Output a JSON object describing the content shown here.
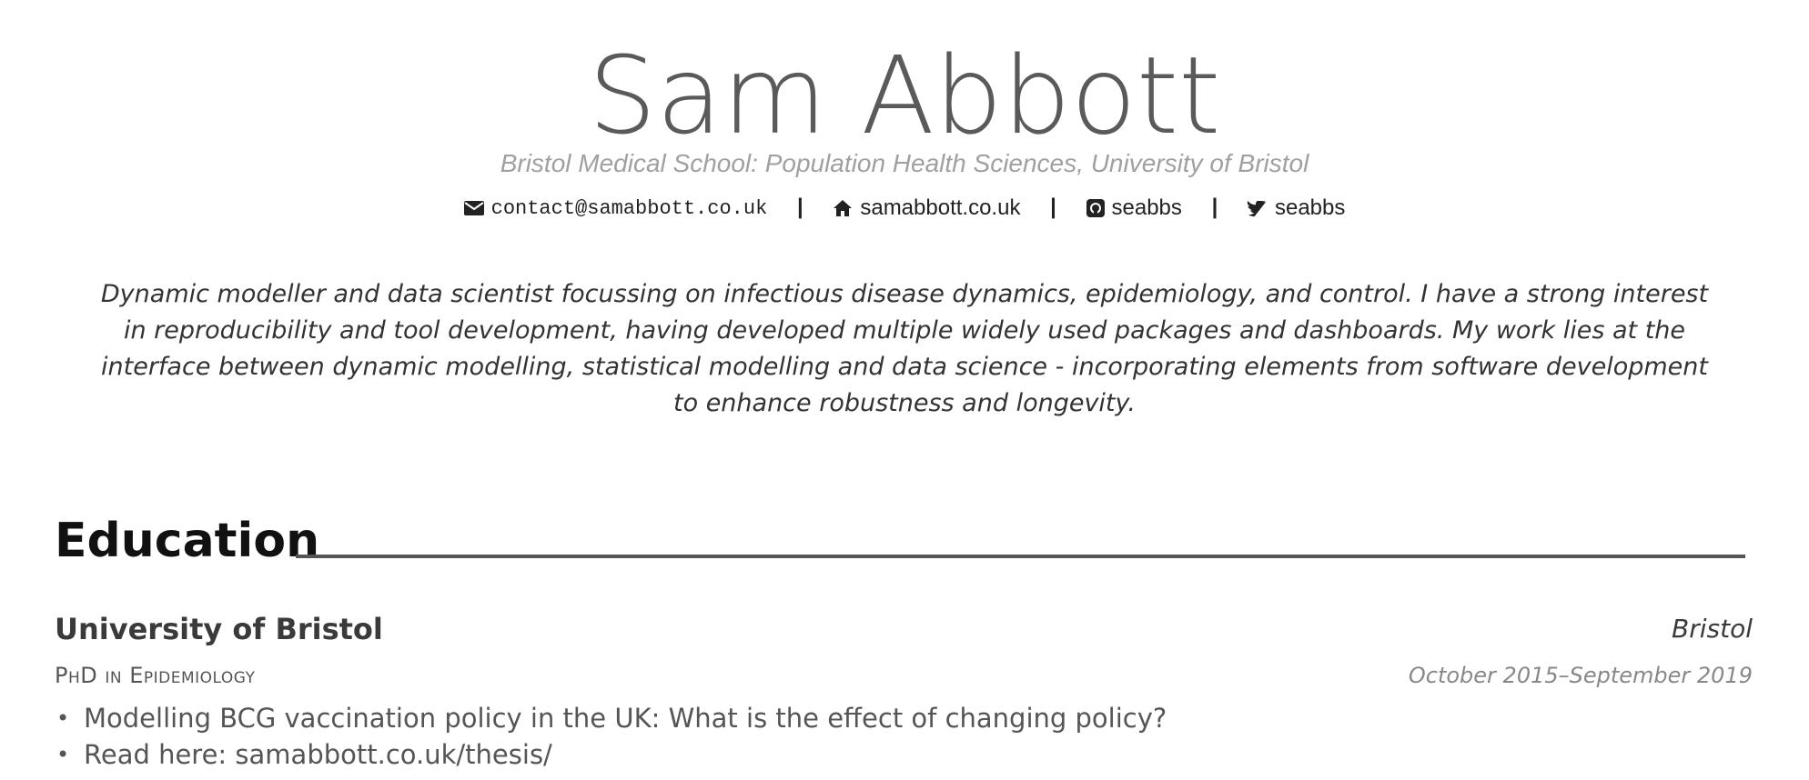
{
  "header": {
    "name": "Sam Abbott",
    "affiliation": "Bristol Medical School: Population Health Sciences, University of Bristol",
    "contacts": [
      {
        "icon": "envelope-icon",
        "text": "contact@samabbott.co.uk"
      },
      {
        "icon": "home-icon",
        "text": "samabbott.co.uk"
      },
      {
        "icon": "github-icon",
        "text": "seabbs"
      },
      {
        "icon": "twitter-icon",
        "text": "seabbs"
      }
    ],
    "separator": "|"
  },
  "summary": "Dynamic modeller and data scientist focussing on infectious disease dynamics, epidemiology, and control. I have a strong interest in reproducibility and tool development, having developed multiple widely used packages and dashboards. My work lies at the interface between dynamic modelling, statistical modelling and data science - incorporating elements from software development to enhance robustness and longevity.",
  "education": {
    "section_title": "Education",
    "entries": [
      {
        "organisation": "University of Bristol",
        "location": "Bristol",
        "degree": "PhD in Epidemiology",
        "dates": "October 2015–September 2019",
        "bullets": [
          "Modelling BCG vaccination policy in the UK: What is the effect of changing policy?",
          "Read here: samabbott.co.uk/thesis/"
        ]
      }
    ]
  },
  "colors": {
    "name": "#5a5a5a",
    "affiliation": "#a0a0a0",
    "rule": "#555555"
  }
}
